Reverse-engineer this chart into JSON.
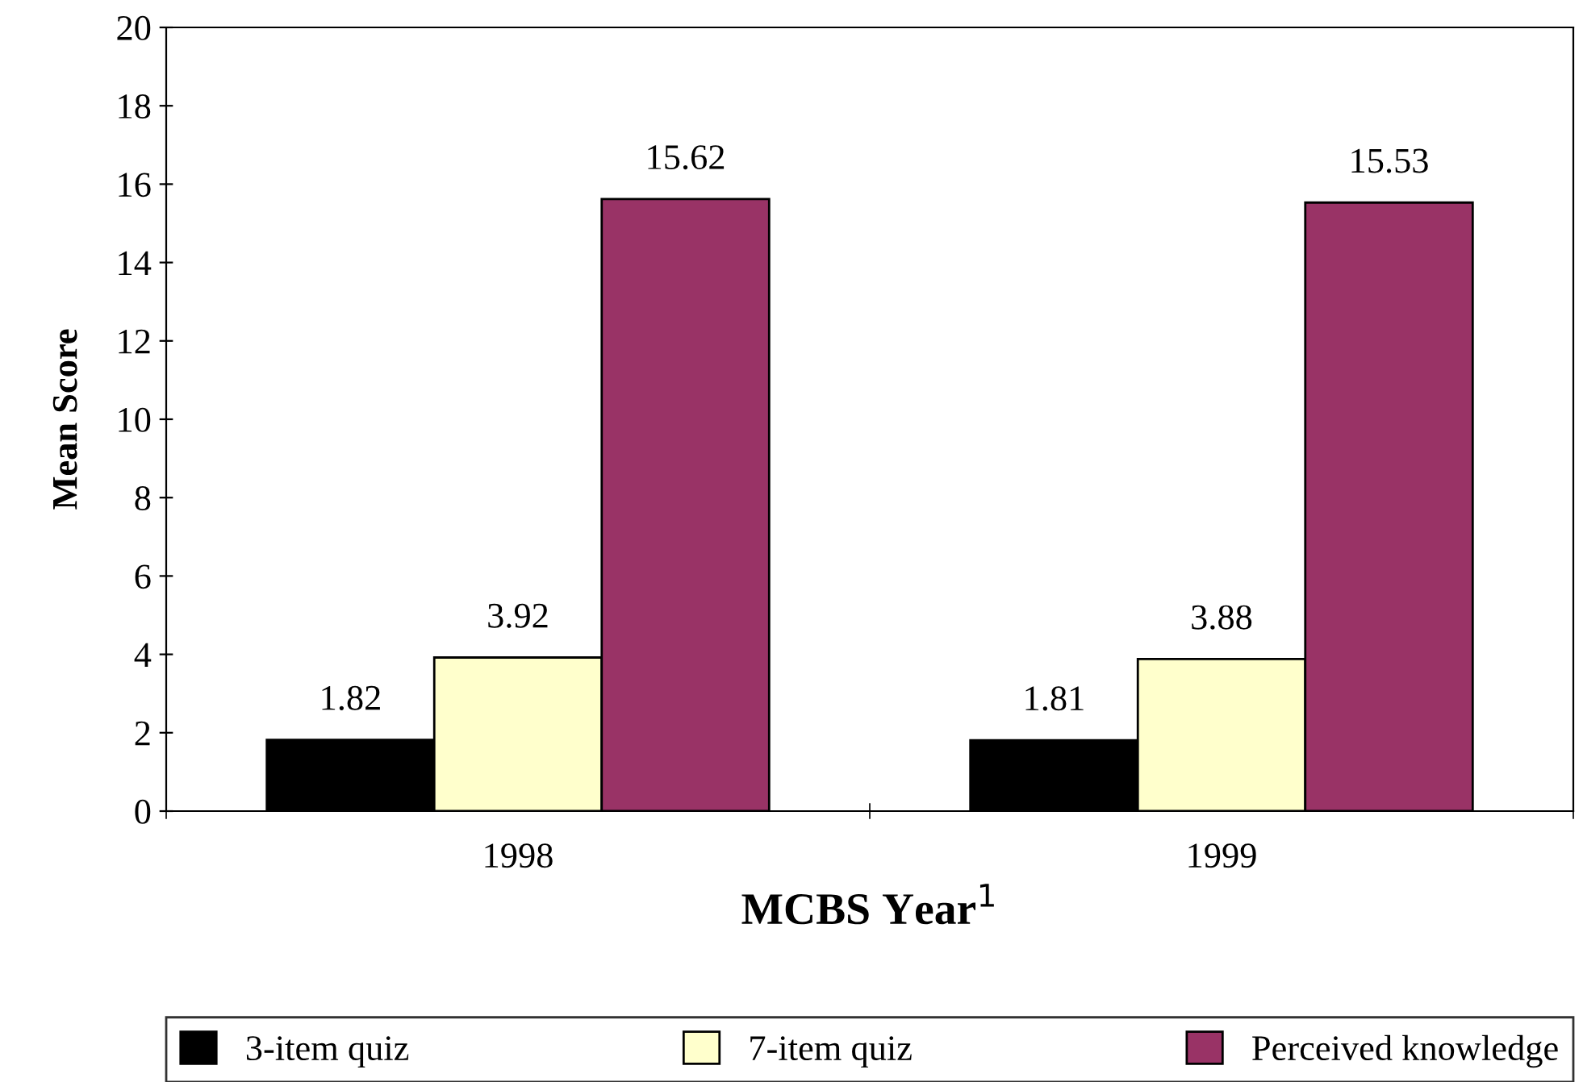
{
  "chart_data": {
    "type": "bar",
    "xlabel": "MCBS Year$^{1}$",
    "ylabel": "Mean Score",
    "categories": [
      "1998",
      "1999"
    ],
    "series": [
      {
        "name": "3-item quiz",
        "color": "#000000",
        "values": [
          1.82,
          1.81
        ]
      },
      {
        "name": "7-item quiz",
        "color": "#ffffcc",
        "values": [
          3.92,
          3.88
        ]
      },
      {
        "name": "Perceived knowledge",
        "color": "#993366",
        "values": [
          15.62,
          15.53
        ]
      }
    ],
    "ylim": [
      0,
      20
    ],
    "yticks": [
      0,
      2,
      4,
      6,
      8,
      10,
      12,
      14,
      16,
      18,
      20
    ],
    "grid": false,
    "legend": "bottom",
    "data_labels": true
  }
}
